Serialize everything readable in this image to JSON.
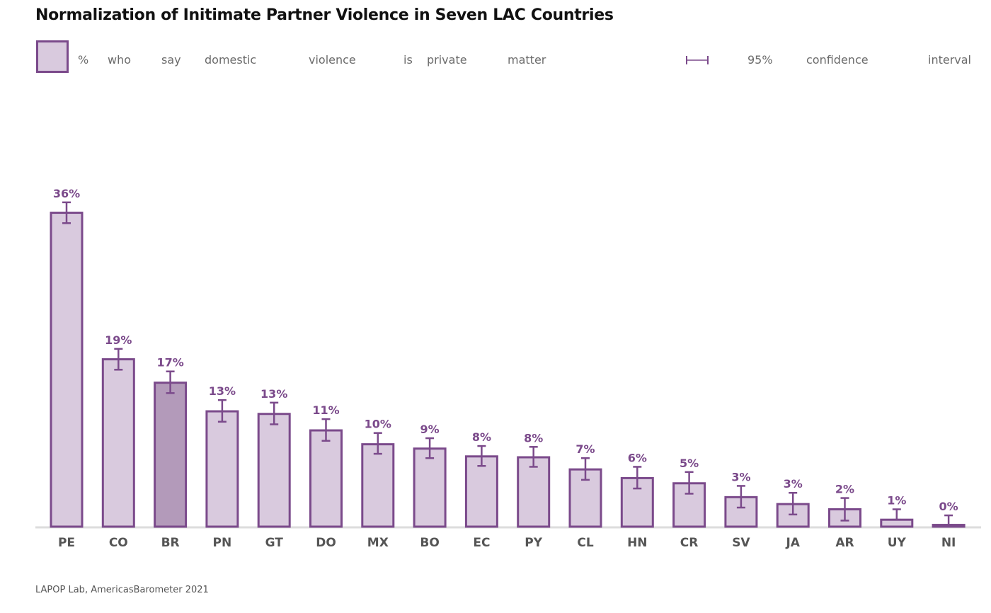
{
  "title": "Normalization of Initimate Partner Violence in Seven LAC Countries",
  "legend": {
    "series_words": [
      "%",
      "who",
      "say",
      "domestic",
      "violence",
      "is",
      "private",
      "matter"
    ],
    "ci_words": [
      "95%",
      "confidence",
      "interval"
    ],
    "ci_icon": "error-bar-icon"
  },
  "source": "LAPOP Lab, AmericasBarometer 2021",
  "colors": {
    "bar_fill": "#d9cade",
    "bar_highlight_fill": "#b39aba",
    "bar_stroke": "#7b4a8b",
    "baseline": "#dddddd",
    "label": "#7b4a8b",
    "tick": "#555555"
  },
  "chart_data": {
    "type": "bar",
    "title": "Normalization of Initimate Partner Violence in Seven LAC Countries",
    "xlabel": "",
    "ylabel": "",
    "ylim": [
      0,
      40
    ],
    "grid": false,
    "legend_position": "top",
    "highlight": "BR",
    "categories": [
      "PE",
      "CO",
      "BR",
      "PN",
      "GT",
      "DO",
      "MX",
      "BO",
      "EC",
      "PY",
      "CL",
      "HN",
      "CR",
      "SV",
      "JA",
      "AR",
      "UY",
      "NI"
    ],
    "series": [
      {
        "name": "% who say domestic violence is private matter",
        "values": [
          36.2,
          19.3,
          16.6,
          13.3,
          13.0,
          11.1,
          9.5,
          9.0,
          8.1,
          8.0,
          6.6,
          5.6,
          5.0,
          3.4,
          2.6,
          2.0,
          0.8,
          0.2
        ],
        "labels": [
          "36%",
          "19%",
          "17%",
          "13%",
          "13%",
          "11%",
          "10%",
          "9%",
          "8%",
          "8%",
          "7%",
          "6%",
          "5%",
          "3%",
          "3%",
          "2%",
          "1%",
          "0%"
        ],
        "ci_low": [
          35.0,
          18.1,
          15.4,
          12.1,
          11.8,
          9.9,
          8.4,
          7.9,
          7.0,
          6.9,
          5.4,
          4.4,
          3.8,
          2.2,
          1.4,
          0.7,
          0.8,
          0.2
        ],
        "ci_high": [
          37.4,
          20.5,
          17.9,
          14.6,
          14.3,
          12.4,
          10.8,
          10.2,
          9.3,
          9.2,
          7.9,
          6.9,
          6.3,
          4.7,
          3.9,
          3.3,
          2.0,
          1.3
        ]
      }
    ]
  }
}
